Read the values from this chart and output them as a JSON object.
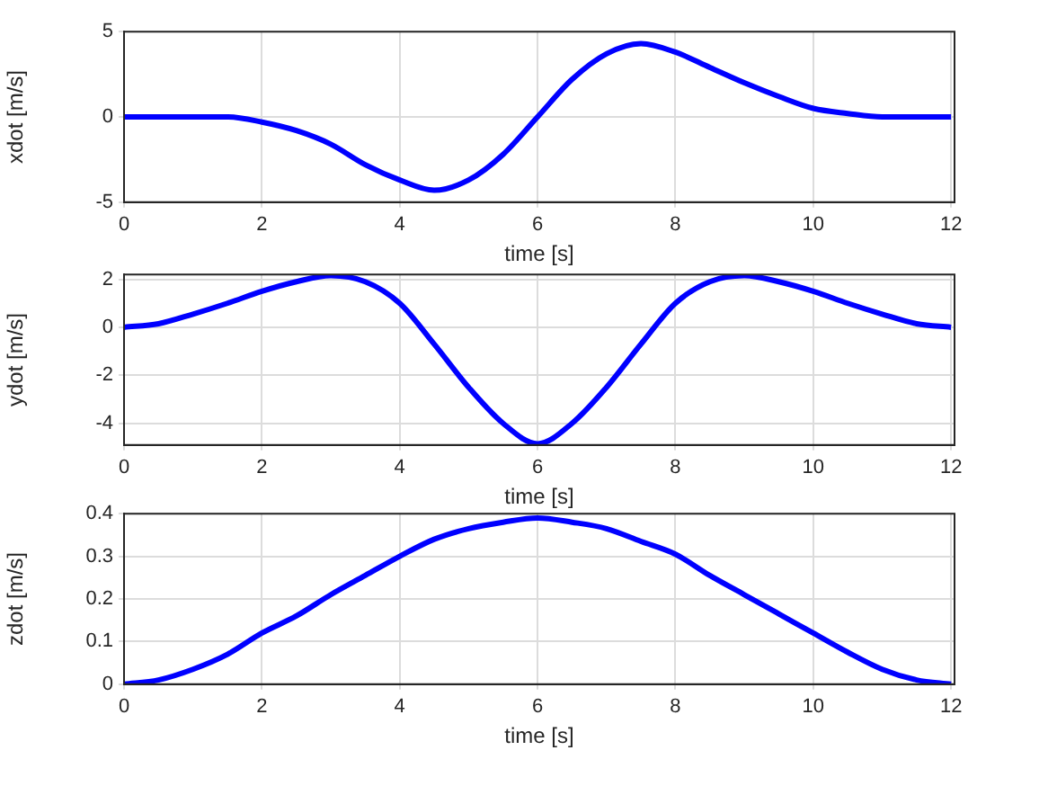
{
  "chart_data": [
    {
      "type": "line",
      "xlabel": "time [s]",
      "ylabel": "xdot [m/s]",
      "x": [
        0,
        0.5,
        1,
        1.5,
        2,
        2.5,
        3,
        3.5,
        4,
        4.5,
        5,
        5.5,
        6,
        6.5,
        7,
        7.5,
        8,
        8.5,
        9,
        9.5,
        10,
        10.5,
        11,
        11.5,
        12
      ],
      "series": [
        {
          "color": "#0000ff",
          "values": [
            0,
            0,
            0,
            0,
            -0.3,
            -0.8,
            -1.6,
            -2.8,
            -3.7,
            -4.3,
            -3.7,
            -2.2,
            0,
            2.2,
            3.7,
            4.3,
            3.8,
            2.9,
            2.0,
            1.2,
            0.5,
            0.2,
            0,
            0,
            0
          ]
        }
      ],
      "xlim": [
        0,
        12.05
      ],
      "xticks": [
        0,
        2,
        4,
        6,
        8,
        10,
        12
      ],
      "ylim": [
        -5,
        5
      ],
      "yticks": [
        -5,
        0,
        5
      ],
      "grid": true,
      "marker": "none",
      "line_style": "solid"
    },
    {
      "type": "line",
      "xlabel": "time [s]",
      "ylabel": "ydot [m/s]",
      "x": [
        0,
        0.5,
        1,
        1.5,
        2,
        2.5,
        3,
        3.5,
        4,
        4.5,
        5,
        5.5,
        6,
        6.5,
        7,
        7.5,
        8,
        8.5,
        9,
        9.5,
        10,
        10.5,
        11,
        11.5,
        12
      ],
      "series": [
        {
          "color": "#0000ff",
          "values": [
            0,
            0.15,
            0.55,
            1.0,
            1.5,
            1.9,
            2.15,
            1.9,
            1.0,
            -0.7,
            -2.5,
            -4.0,
            -4.85,
            -4.0,
            -2.5,
            -0.7,
            1.0,
            1.9,
            2.15,
            1.9,
            1.5,
            1.0,
            0.55,
            0.15,
            0
          ]
        }
      ],
      "xlim": [
        0,
        12.05
      ],
      "xticks": [
        0,
        2,
        4,
        6,
        8,
        10,
        12
      ],
      "ylim": [
        -4.9,
        2.2
      ],
      "yticks": [
        -4,
        -2,
        0,
        2
      ],
      "grid": true,
      "marker": "none",
      "line_style": "solid"
    },
    {
      "type": "line",
      "xlabel": "time [s]",
      "ylabel": "zdot [m/s]",
      "x": [
        0,
        0.5,
        1,
        1.5,
        2,
        2.5,
        3,
        3.5,
        4,
        4.5,
        5,
        5.5,
        6,
        6.5,
        7,
        7.5,
        8,
        8.5,
        9,
        9.5,
        10,
        10.5,
        11,
        11.5,
        12
      ],
      "series": [
        {
          "color": "#0000ff",
          "values": [
            0,
            0.01,
            0.035,
            0.07,
            0.12,
            0.16,
            0.21,
            0.255,
            0.3,
            0.34,
            0.365,
            0.38,
            0.39,
            0.38,
            0.365,
            0.335,
            0.305,
            0.255,
            0.21,
            0.165,
            0.12,
            0.075,
            0.035,
            0.01,
            0
          ]
        }
      ],
      "xlim": [
        0,
        12.05
      ],
      "xticks": [
        0,
        2,
        4,
        6,
        8,
        10,
        12
      ],
      "ylim": [
        0,
        0.4
      ],
      "yticks": [
        0,
        0.1,
        0.2,
        0.3,
        0.4
      ],
      "grid": true,
      "marker": "none",
      "line_style": "solid"
    }
  ]
}
